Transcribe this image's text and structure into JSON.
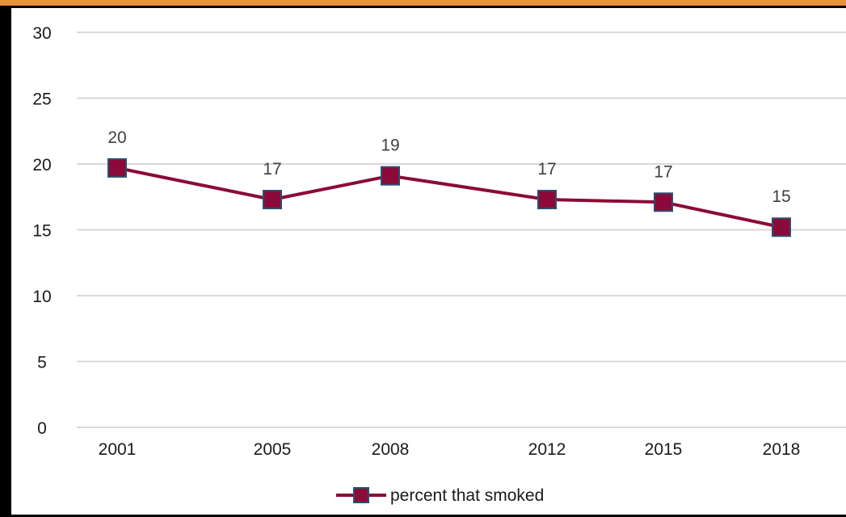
{
  "chart_data": {
    "type": "line",
    "categories": [
      "2001",
      "2005",
      "2008",
      "2012",
      "2015",
      "2018"
    ],
    "series": [
      {
        "name": "percent that smoked",
        "values": [
          19.7,
          17.3,
          19.1,
          17.3,
          17.1,
          15.2
        ],
        "labels": [
          "20",
          "17",
          "19",
          "17",
          "17",
          "15"
        ],
        "color": "#8b0a3a",
        "marker_border": "#2c4f6e"
      }
    ],
    "ylim": [
      0,
      30
    ],
    "yticks": [
      0,
      5,
      10,
      15,
      20,
      25,
      30
    ],
    "grid": true,
    "legend": "bottom-center"
  }
}
